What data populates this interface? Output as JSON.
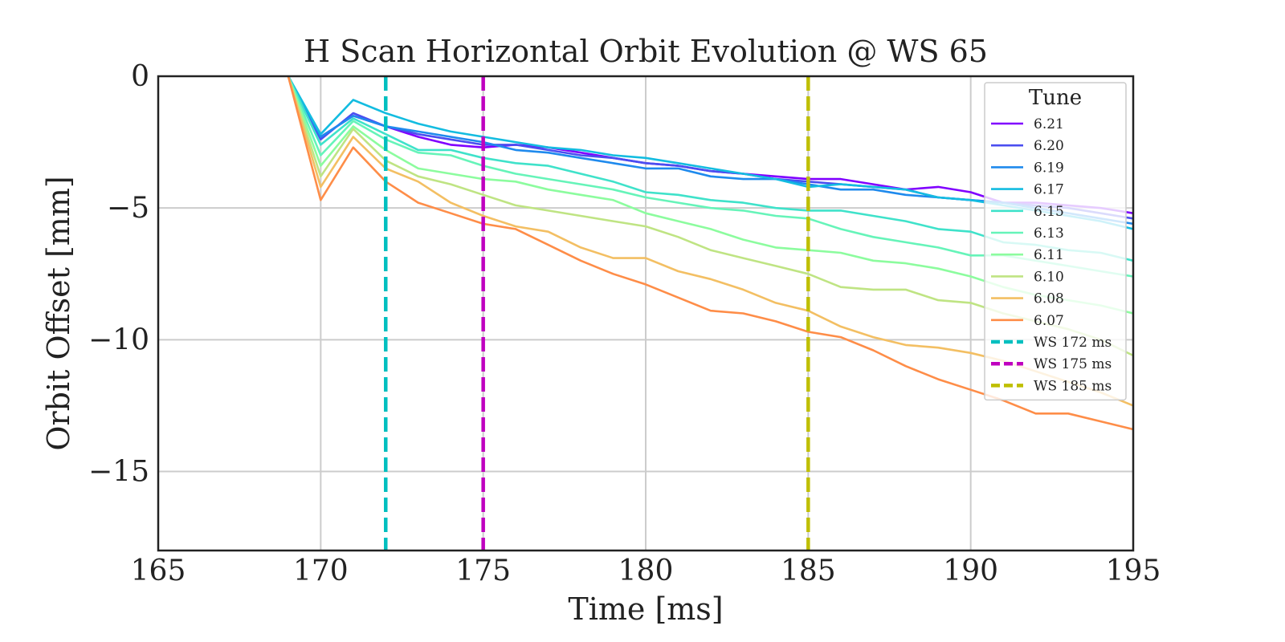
{
  "chart_data": {
    "type": "line",
    "title": "H Scan Horizontal Orbit Evolution @ WS 65",
    "xlabel": "Time [ms]",
    "ylabel": "Orbit Offset [mm]",
    "xlim": [
      165,
      195
    ],
    "ylim": [
      -18,
      0
    ],
    "xticks": [
      165,
      170,
      175,
      180,
      185,
      190,
      195
    ],
    "yticks": [
      0,
      -5,
      -10,
      -15
    ],
    "xtick_labels": [
      "165",
      "170",
      "175",
      "180",
      "185",
      "190",
      "195"
    ],
    "ytick_labels": [
      "0",
      "−5",
      "−10",
      "−15"
    ],
    "grid": true,
    "legend": {
      "title": "Tune",
      "position": "right"
    },
    "x": [
      169,
      170,
      171,
      172,
      173,
      174,
      175,
      176,
      177,
      178,
      179,
      180,
      181,
      182,
      183,
      184,
      185,
      186,
      187,
      188,
      189,
      190,
      191,
      192,
      193,
      194,
      195
    ],
    "series": [
      {
        "name": "6.21",
        "color": "#8000ff",
        "values": [
          0,
          -2.3,
          -1.5,
          -1.9,
          -2.3,
          -2.6,
          -2.7,
          -2.6,
          -2.7,
          -2.9,
          -3.1,
          -3.3,
          -3.4,
          -3.6,
          -3.7,
          -3.8,
          -3.9,
          -3.9,
          -4.1,
          -4.3,
          -4.2,
          -4.4,
          -4.8,
          -4.8,
          -4.9,
          -5.0,
          -5.2
        ]
      },
      {
        "name": "6.20",
        "color": "#4b4ef0",
        "values": [
          0,
          -2.4,
          -1.4,
          -1.9,
          -2.2,
          -2.4,
          -2.6,
          -2.6,
          -2.8,
          -3.0,
          -3.1,
          -3.3,
          -3.4,
          -3.6,
          -3.7,
          -3.9,
          -4.0,
          -4.1,
          -4.2,
          -4.3,
          -4.6,
          -4.7,
          -4.8,
          -4.9,
          -5.0,
          -5.2,
          -5.4
        ]
      },
      {
        "name": "6.19",
        "color": "#1f8aed",
        "values": [
          0,
          -2.3,
          -1.5,
          -1.9,
          -2.1,
          -2.3,
          -2.5,
          -2.8,
          -2.9,
          -3.1,
          -3.3,
          -3.5,
          -3.5,
          -3.8,
          -3.9,
          -3.9,
          -4.1,
          -4.3,
          -4.3,
          -4.5,
          -4.6,
          -4.7,
          -4.8,
          -5.0,
          -5.2,
          -5.4,
          -5.6
        ]
      },
      {
        "name": "6.17",
        "color": "#13bce0",
        "values": [
          0,
          -2.2,
          -0.9,
          -1.4,
          -1.8,
          -2.1,
          -2.3,
          -2.5,
          -2.7,
          -2.8,
          -3.0,
          -3.1,
          -3.3,
          -3.5,
          -3.7,
          -3.9,
          -4.2,
          -4.1,
          -4.2,
          -4.3,
          -4.6,
          -4.7,
          -4.9,
          -5.1,
          -5.3,
          -5.5,
          -5.8
        ]
      },
      {
        "name": "6.15",
        "color": "#3fe2ca",
        "values": [
          0,
          -2.6,
          -1.6,
          -2.2,
          -2.8,
          -2.8,
          -3.1,
          -3.3,
          -3.4,
          -3.7,
          -4.0,
          -4.4,
          -4.5,
          -4.7,
          -4.8,
          -5.0,
          -5.1,
          -5.1,
          -5.3,
          -5.5,
          -5.8,
          -5.9,
          -6.3,
          -6.4,
          -6.6,
          -6.7,
          -7.0
        ]
      },
      {
        "name": "6.13",
        "color": "#66f4b9",
        "values": [
          0,
          -3.0,
          -1.7,
          -2.4,
          -2.9,
          -3.0,
          -3.4,
          -3.7,
          -3.9,
          -4.1,
          -4.3,
          -4.6,
          -4.8,
          -5.0,
          -5.1,
          -5.3,
          -5.4,
          -5.8,
          -6.1,
          -6.3,
          -6.5,
          -6.8,
          -6.8,
          -7.0,
          -7.2,
          -7.4,
          -7.6
        ]
      },
      {
        "name": "6.11",
        "color": "#8cfc9e",
        "values": [
          0,
          -3.4,
          -1.9,
          -2.8,
          -3.5,
          -3.7,
          -3.9,
          -4.0,
          -4.3,
          -4.5,
          -4.7,
          -5.2,
          -5.5,
          -5.8,
          -6.2,
          -6.5,
          -6.6,
          -6.7,
          -7.0,
          -7.1,
          -7.3,
          -7.6,
          -8.0,
          -8.3,
          -8.5,
          -8.7,
          -9.0
        ]
      },
      {
        "name": "6.10",
        "color": "#bfe483",
        "values": [
          0,
          -3.8,
          -2.0,
          -3.2,
          -3.8,
          -4.1,
          -4.5,
          -4.9,
          -5.1,
          -5.3,
          -5.5,
          -5.7,
          -6.1,
          -6.6,
          -6.9,
          -7.2,
          -7.5,
          -8.0,
          -8.1,
          -8.1,
          -8.5,
          -8.6,
          -9.0,
          -9.3,
          -9.6,
          -10.0,
          -10.6
        ]
      },
      {
        "name": "6.08",
        "color": "#f3bf63",
        "values": [
          0,
          -4.2,
          -2.3,
          -3.5,
          -4.0,
          -4.8,
          -5.3,
          -5.7,
          -5.9,
          -6.5,
          -6.9,
          -6.9,
          -7.4,
          -7.7,
          -8.1,
          -8.6,
          -8.9,
          -9.5,
          -9.9,
          -10.2,
          -10.3,
          -10.5,
          -10.8,
          -11.2,
          -11.6,
          -12.0,
          -12.5
        ]
      },
      {
        "name": "6.07",
        "color": "#fe8d48",
        "values": [
          0,
          -4.7,
          -2.7,
          -4.0,
          -4.8,
          -5.2,
          -5.6,
          -5.8,
          -6.4,
          -7.0,
          -7.5,
          -7.9,
          -8.4,
          -8.9,
          -9.0,
          -9.3,
          -9.7,
          -9.9,
          -10.4,
          -11.0,
          -11.5,
          -11.9,
          -12.3,
          -12.8,
          -12.8,
          -13.1,
          -13.4
        ]
      }
    ],
    "vlines": [
      {
        "name": "WS 172 ms",
        "x": 172,
        "color": "#00bfbf"
      },
      {
        "name": "WS 175 ms",
        "x": 175,
        "color": "#bf00bf"
      },
      {
        "name": "WS 185 ms",
        "x": 185,
        "color": "#bfbf00"
      }
    ]
  }
}
